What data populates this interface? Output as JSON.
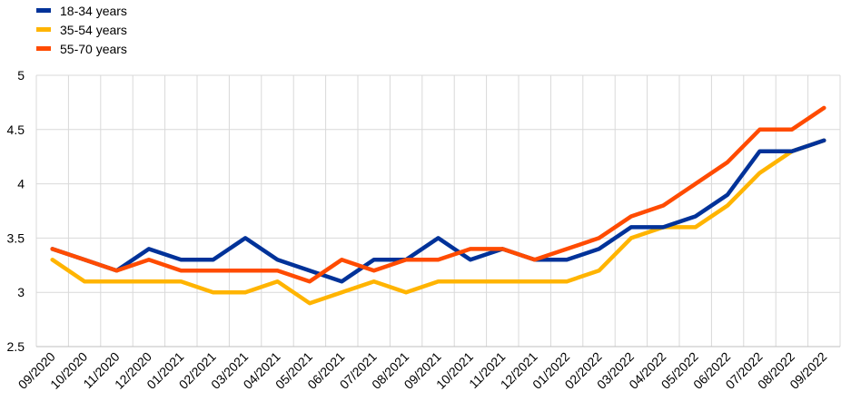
{
  "chart_data": {
    "type": "line",
    "title": "",
    "xlabel": "",
    "ylabel": "",
    "ylim": [
      2.5,
      5
    ],
    "yticks": [
      "2.5",
      "3",
      "3.5",
      "4",
      "4.5",
      "5"
    ],
    "grid": true,
    "legend_position": "top-left",
    "categories": [
      "09/2020",
      "10/2020",
      "11/2020",
      "12/2020",
      "01/2021",
      "02/2021",
      "03/2021",
      "04/2021",
      "05/2021",
      "06/2021",
      "07/2021",
      "08/2021",
      "09/2021",
      "10/2021",
      "11/2021",
      "12/2021",
      "01/2022",
      "02/2022",
      "03/2022",
      "04/2022",
      "05/2022",
      "06/2022",
      "07/2022",
      "08/2022",
      "09/2022"
    ],
    "series": [
      {
        "name": "18-34 years",
        "color": "#003299",
        "values": [
          3.4,
          3.3,
          3.2,
          3.4,
          3.3,
          3.3,
          3.5,
          3.3,
          3.2,
          3.1,
          3.3,
          3.3,
          3.5,
          3.3,
          3.4,
          3.3,
          3.3,
          3.4,
          3.6,
          3.6,
          3.7,
          3.9,
          4.3,
          4.3,
          4.4
        ]
      },
      {
        "name": "35-54 years",
        "color": "#FFB400",
        "values": [
          3.3,
          3.1,
          3.1,
          3.1,
          3.1,
          3.0,
          3.0,
          3.1,
          2.9,
          3.0,
          3.1,
          3.0,
          3.1,
          3.1,
          3.1,
          3.1,
          3.1,
          3.2,
          3.5,
          3.6,
          3.6,
          3.8,
          4.1,
          4.3,
          4.4
        ]
      },
      {
        "name": "55-70 years",
        "color": "#FF4B00",
        "values": [
          3.4,
          3.3,
          3.2,
          3.3,
          3.2,
          3.2,
          3.2,
          3.2,
          3.1,
          3.3,
          3.2,
          3.3,
          3.3,
          3.4,
          3.4,
          3.3,
          3.4,
          3.5,
          3.7,
          3.8,
          4.0,
          4.2,
          4.5,
          4.5,
          4.7
        ]
      }
    ]
  }
}
